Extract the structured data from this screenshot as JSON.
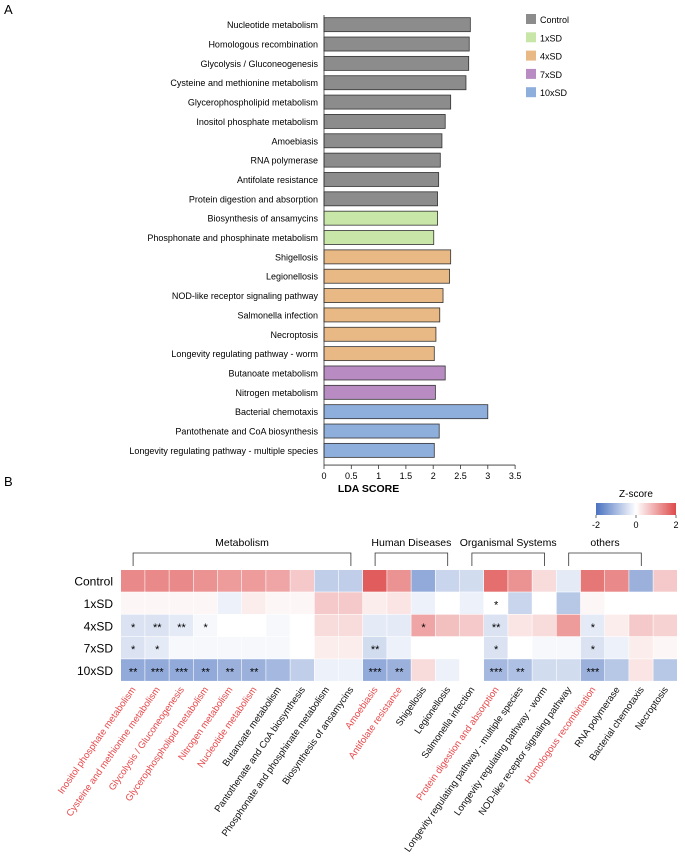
{
  "figure": {
    "panel_a_label": "A",
    "panel_b_label": "B"
  },
  "chart_data": [
    {
      "type": "bar",
      "orientation": "horizontal",
      "panel": "A",
      "xlabel": "LDA SCORE",
      "xlim": [
        0,
        3.5
      ],
      "xticks": [
        0,
        0.5,
        1,
        1.5,
        2,
        2.5,
        3,
        3.5
      ],
      "xtick_labels": [
        "0",
        "0.5",
        "1",
        "1.5",
        "2",
        "2.5",
        "3",
        "3.5"
      ],
      "legend": [
        {
          "name": "Control",
          "color": "#8c8c8c"
        },
        {
          "name": "1xSD",
          "color": "#c8e6a8"
        },
        {
          "name": "4xSD",
          "color": "#e8b985"
        },
        {
          "name": "7xSD",
          "color": "#b88cc2"
        },
        {
          "name": "10xSD",
          "color": "#8eaedc"
        }
      ],
      "bars": [
        {
          "label": "Nucleotide metabolism",
          "value": 2.68,
          "group": "Control"
        },
        {
          "label": "Homologous recombination",
          "value": 2.66,
          "group": "Control"
        },
        {
          "label": "Glycolysis / Gluconeogenesis",
          "value": 2.65,
          "group": "Control"
        },
        {
          "label": "Cysteine and methionine metabolism",
          "value": 2.6,
          "group": "Control"
        },
        {
          "label": "Glycerophospholipid metabolism",
          "value": 2.32,
          "group": "Control"
        },
        {
          "label": "Inositol phosphate metabolism",
          "value": 2.22,
          "group": "Control"
        },
        {
          "label": "Amoebiasis",
          "value": 2.16,
          "group": "Control"
        },
        {
          "label": "RNA polymerase",
          "value": 2.13,
          "group": "Control"
        },
        {
          "label": "Antifolate resistance",
          "value": 2.1,
          "group": "Control"
        },
        {
          "label": "Protein digestion and absorption",
          "value": 2.08,
          "group": "Control"
        },
        {
          "label": "Biosynthesis of ansamycins",
          "value": 2.08,
          "group": "1xSD"
        },
        {
          "label": "Phosphonate and phosphinate metabolism",
          "value": 2.01,
          "group": "1xSD"
        },
        {
          "label": "Shigellosis",
          "value": 2.32,
          "group": "4xSD"
        },
        {
          "label": "Legionellosis",
          "value": 2.3,
          "group": "4xSD"
        },
        {
          "label": "NOD-like receptor signaling pathway",
          "value": 2.18,
          "group": "4xSD"
        },
        {
          "label": "Salmonella infection",
          "value": 2.12,
          "group": "4xSD"
        },
        {
          "label": "Necroptosis",
          "value": 2.05,
          "group": "4xSD"
        },
        {
          "label": "Longevity regulating pathway - worm",
          "value": 2.02,
          "group": "4xSD"
        },
        {
          "label": "Butanoate metabolism",
          "value": 2.22,
          "group": "7xSD"
        },
        {
          "label": "Nitrogen metabolism",
          "value": 2.04,
          "group": "7xSD"
        },
        {
          "label": "Bacterial chemotaxis",
          "value": 3.0,
          "group": "10xSD"
        },
        {
          "label": "Pantothenate and CoA biosynthesis",
          "value": 2.11,
          "group": "10xSD"
        },
        {
          "label": "Longevity regulating pathway - multiple species",
          "value": 2.02,
          "group": "10xSD"
        }
      ]
    },
    {
      "type": "heatmap",
      "panel": "B",
      "colorbar": {
        "title": "Z-score",
        "min": -2,
        "max": 2,
        "ticks": [
          "-2",
          "0",
          "2"
        ],
        "low_color": "#4a72c0",
        "mid_color": "#ffffff",
        "high_color": "#de4a4a"
      },
      "rows": [
        "Control",
        "1xSD",
        "4xSD",
        "7xSD",
        "10xSD"
      ],
      "groups": [
        {
          "name": "Metabolism",
          "start": 0,
          "end": 9
        },
        {
          "name": "Human Diseases",
          "start": 10,
          "end": 13
        },
        {
          "name": "Organismal Systems",
          "start": 14,
          "end": 17
        },
        {
          "name": "others",
          "start": 18,
          "end": 21
        }
      ],
      "columns": [
        {
          "label": "Inositol phosphate metabolism",
          "highlight": true
        },
        {
          "label": "Cysteine and methionine metabolism",
          "highlight": true
        },
        {
          "label": "Glycolysis / Gluconeogenesis",
          "highlight": true
        },
        {
          "label": "Glycerophospholipid metabolism",
          "highlight": true
        },
        {
          "label": "Nitrogen metabolism",
          "highlight": true
        },
        {
          "label": "Nucleotide metabolism",
          "highlight": true
        },
        {
          "label": "Butanoate metabolism",
          "highlight": false
        },
        {
          "label": "Pantothenate and CoA biosynthesis",
          "highlight": false
        },
        {
          "label": "Phosphonate and phosphinate metabolism",
          "highlight": false
        },
        {
          "label": "Biosynthesis of ansamycins",
          "highlight": false
        },
        {
          "label": "Amoebiasis",
          "highlight": true
        },
        {
          "label": "Antifolate resistance",
          "highlight": true
        },
        {
          "label": "Shigellosis",
          "highlight": false
        },
        {
          "label": "Legionellosis",
          "highlight": false
        },
        {
          "label": "Salmonella infection",
          "highlight": false
        },
        {
          "label": "Protein digestion and absorption",
          "highlight": true
        },
        {
          "label": "Longevity regulating pathway - multiple species",
          "highlight": false
        },
        {
          "label": "Longevity regulating pathway - worm",
          "highlight": false
        },
        {
          "label": "NOD-like receptor signaling pathway",
          "highlight": false
        },
        {
          "label": "Homologous recombination",
          "highlight": true
        },
        {
          "label": "RNA polymerase",
          "highlight": false
        },
        {
          "label": "Bacterial chemotaxis",
          "highlight": false
        },
        {
          "label": "Necroptosis",
          "highlight": false
        }
      ],
      "values": [
        [
          1.3,
          1.3,
          1.3,
          1.2,
          1.1,
          1.1,
          1.0,
          0.6,
          -0.7,
          -0.7,
          1.8,
          1.2,
          -1.2,
          -0.6,
          -0.5,
          1.6,
          1.2,
          0.4,
          -0.3,
          1.5,
          1.3,
          -1.1,
          0.6
        ],
        [
          0.1,
          0.1,
          0.1,
          0.1,
          -0.2,
          0.2,
          0.1,
          0.1,
          0.6,
          0.6,
          0.2,
          0.3,
          -0.2,
          0.0,
          -0.2,
          0.0,
          -0.6,
          0.0,
          -0.8,
          0.1,
          0.0,
          0.0,
          0.0
        ],
        [
          -0.4,
          -0.4,
          -0.3,
          -0.1,
          0.0,
          0.0,
          -0.1,
          0.0,
          0.4,
          0.4,
          -0.3,
          -0.3,
          1.0,
          0.7,
          0.6,
          -0.4,
          0.3,
          0.4,
          1.1,
          -0.3,
          0.2,
          0.6,
          0.5
        ],
        [
          -0.4,
          -0.3,
          -0.1,
          -0.1,
          -0.1,
          -0.1,
          -0.1,
          0.0,
          0.2,
          0.2,
          -0.5,
          -0.2,
          0.0,
          0.0,
          0.0,
          -0.4,
          0.0,
          -0.1,
          -0.1,
          -0.4,
          -0.2,
          0.2,
          0.1
        ],
        [
          -1.2,
          -1.2,
          -1.2,
          -1.2,
          -1.1,
          -1.1,
          -1.0,
          -0.7,
          -0.2,
          -0.2,
          -1.2,
          -1.1,
          0.4,
          -0.2,
          0.0,
          -1.0,
          -0.9,
          -0.5,
          -0.5,
          -1.1,
          -0.8,
          0.3,
          -0.8
        ]
      ],
      "significance": [
        [
          "",
          "",
          "",
          "",
          "",
          "",
          "",
          "",
          "",
          "",
          "",
          "",
          "",
          "",
          "",
          "",
          "",
          "",
          "",
          "",
          "",
          "",
          ""
        ],
        [
          "",
          "",
          "",
          "",
          "",
          "",
          "",
          "",
          "",
          "",
          "",
          "",
          "",
          "",
          "",
          "*",
          "",
          "",
          "",
          "",
          "",
          "",
          ""
        ],
        [
          "*",
          "**",
          "**",
          "*",
          "",
          "",
          "",
          "",
          "",
          "",
          "",
          "",
          "*",
          "",
          "",
          "**",
          "",
          "",
          "",
          "*",
          "",
          "",
          ""
        ],
        [
          "*",
          "*",
          "",
          "",
          "",
          "",
          "",
          "",
          "",
          "",
          "**",
          "",
          "",
          "",
          "",
          "*",
          "",
          "",
          "",
          "*",
          "",
          "",
          ""
        ],
        [
          "**",
          "***",
          "***",
          "**",
          "**",
          "**",
          "",
          "",
          "",
          "",
          "***",
          "**",
          "",
          "",
          "",
          "***",
          "**",
          "",
          "",
          "***",
          "",
          "",
          ""
        ]
      ]
    }
  ]
}
